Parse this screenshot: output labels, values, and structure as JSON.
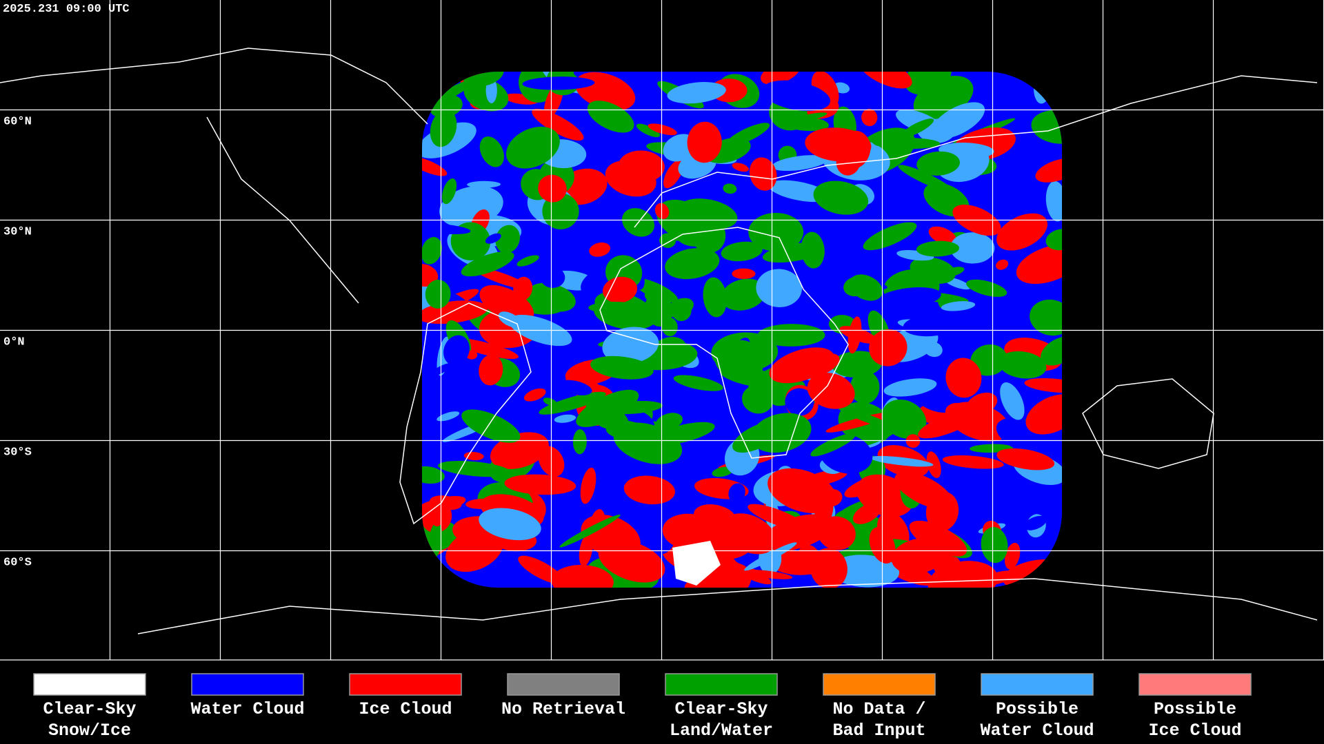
{
  "timestamp": "2025.231 09:00 UTC",
  "lat_labels": [
    "60°N",
    "30°N",
    "0°N",
    "30°S",
    "60°S"
  ],
  "legend": {
    "items": [
      {
        "color": "#ffffff",
        "lines": [
          "Clear-Sky",
          "Snow/Ice"
        ]
      },
      {
        "color": "#0000ff",
        "lines": [
          "Water Cloud"
        ]
      },
      {
        "color": "#ff0000",
        "lines": [
          "Ice Cloud"
        ]
      },
      {
        "color": "#808080",
        "lines": [
          "No Retrieval"
        ]
      },
      {
        "color": "#00a000",
        "lines": [
          "Clear-Sky",
          "Land/Water"
        ]
      },
      {
        "color": "#ff8000",
        "lines": [
          "No Data /",
          "Bad Input"
        ]
      },
      {
        "color": "#40a8ff",
        "lines": [
          "Possible",
          "Water Cloud"
        ]
      },
      {
        "color": "#ff7a7a",
        "lines": [
          "Possible",
          "Ice Cloud"
        ]
      }
    ]
  }
}
